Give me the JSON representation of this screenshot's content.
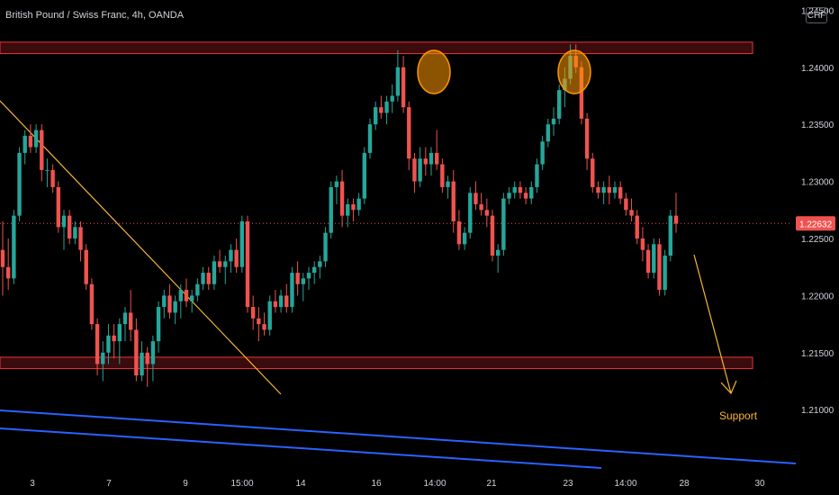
{
  "header": {
    "title": "British Pound / Swiss Franc, 4h, OANDA",
    "currency_button": "CHF"
  },
  "colors": {
    "background": "#000000",
    "up": "#26a69a",
    "down": "#ef5350",
    "zone_fill": "#3b0b0d",
    "zone_stroke": "#e53935",
    "trendline": "#f7b733",
    "channel": "#2962ff",
    "highlight_circle": "#ff9800",
    "price_badge": "#ef5350",
    "axis_text": "#d1d4dc",
    "support_text": "#f7b733"
  },
  "chart_data": {
    "type": "candlestick",
    "symbol": "British Pound / Swiss Franc",
    "timeframe": "4h",
    "broker": "OANDA",
    "ylim": [
      1.2045,
      1.2455
    ],
    "y_ticks": [
      "1.24500",
      "1.24000",
      "1.23500",
      "1.23000",
      "1.22500",
      "1.22000",
      "1.21500",
      "1.21000"
    ],
    "x_ticks": [
      "3",
      "7",
      "9",
      "15:00",
      "14",
      "16",
      "14:00",
      "21",
      "23",
      "14:00",
      "28",
      "30"
    ],
    "current_price": "1.22632",
    "candles": [
      [
        1.224,
        1.2265,
        1.22,
        1.2225
      ],
      [
        1.2225,
        1.225,
        1.2205,
        1.2215
      ],
      [
        1.2215,
        1.2275,
        1.221,
        1.227
      ],
      [
        1.227,
        1.233,
        1.2265,
        1.2325
      ],
      [
        1.2325,
        1.2345,
        1.2315,
        1.234
      ],
      [
        1.234,
        1.235,
        1.2325,
        1.233
      ],
      [
        1.233,
        1.235,
        1.2325,
        1.2345
      ],
      [
        1.2345,
        1.235,
        1.23,
        1.231
      ],
      [
        1.231,
        1.232,
        1.2295,
        1.231
      ],
      [
        1.231,
        1.2315,
        1.229,
        1.2295
      ],
      [
        1.2295,
        1.23,
        1.2255,
        1.226
      ],
      [
        1.226,
        1.2275,
        1.224,
        1.227
      ],
      [
        1.227,
        1.2275,
        1.2245,
        1.225
      ],
      [
        1.225,
        1.2265,
        1.2245,
        1.226
      ],
      [
        1.226,
        1.2265,
        1.223,
        1.224
      ],
      [
        1.224,
        1.2245,
        1.2205,
        1.221
      ],
      [
        1.221,
        1.2215,
        1.217,
        1.2175
      ],
      [
        1.2175,
        1.218,
        1.213,
        1.214
      ],
      [
        1.214,
        1.216,
        1.2125,
        1.215
      ],
      [
        1.215,
        1.2175,
        1.214,
        1.2165
      ],
      [
        1.2165,
        1.2175,
        1.2145,
        1.216
      ],
      [
        1.216,
        1.218,
        1.214,
        1.2175
      ],
      [
        1.2175,
        1.219,
        1.216,
        1.2185
      ],
      [
        1.2185,
        1.2205,
        1.216,
        1.217
      ],
      [
        1.217,
        1.218,
        1.2125,
        1.213
      ],
      [
        1.213,
        1.216,
        1.2125,
        1.215
      ],
      [
        1.215,
        1.2155,
        1.212,
        1.214
      ],
      [
        1.214,
        1.2165,
        1.2125,
        1.216
      ],
      [
        1.216,
        1.2195,
        1.215,
        1.219
      ],
      [
        1.219,
        1.2205,
        1.218,
        1.22
      ],
      [
        1.22,
        1.221,
        1.218,
        1.2185
      ],
      [
        1.2185,
        1.22,
        1.2175,
        1.2195
      ],
      [
        1.2195,
        1.221,
        1.218,
        1.2205
      ],
      [
        1.2205,
        1.2215,
        1.219,
        1.2195
      ],
      [
        1.2195,
        1.2205,
        1.2185,
        1.22
      ],
      [
        1.22,
        1.2215,
        1.2195,
        1.221
      ],
      [
        1.221,
        1.2225,
        1.2205,
        1.222
      ],
      [
        1.222,
        1.2225,
        1.2205,
        1.221
      ],
      [
        1.221,
        1.2235,
        1.2205,
        1.223
      ],
      [
        1.223,
        1.224,
        1.222,
        1.2225
      ],
      [
        1.2225,
        1.2235,
        1.221,
        1.223
      ],
      [
        1.223,
        1.2245,
        1.222,
        1.224
      ],
      [
        1.224,
        1.225,
        1.222,
        1.2225
      ],
      [
        1.2225,
        1.227,
        1.222,
        1.2265
      ],
      [
        1.2265,
        1.227,
        1.2185,
        1.219
      ],
      [
        1.219,
        1.22,
        1.217,
        1.218
      ],
      [
        1.218,
        1.219,
        1.216,
        1.2175
      ],
      [
        1.2175,
        1.2185,
        1.2165,
        1.217
      ],
      [
        1.217,
        1.22,
        1.2165,
        1.2195
      ],
      [
        1.2195,
        1.2205,
        1.2185,
        1.219
      ],
      [
        1.219,
        1.2205,
        1.2185,
        1.22
      ],
      [
        1.22,
        1.221,
        1.2185,
        1.219
      ],
      [
        1.219,
        1.2225,
        1.2185,
        1.222
      ],
      [
        1.222,
        1.223,
        1.22,
        1.221
      ],
      [
        1.221,
        1.222,
        1.2195,
        1.2215
      ],
      [
        1.2215,
        1.2225,
        1.2205,
        1.222
      ],
      [
        1.222,
        1.223,
        1.221,
        1.2225
      ],
      [
        1.2225,
        1.2235,
        1.2215,
        1.223
      ],
      [
        1.223,
        1.226,
        1.2225,
        1.2255
      ],
      [
        1.2255,
        1.23,
        1.225,
        1.2295
      ],
      [
        1.2295,
        1.2305,
        1.228,
        1.23
      ],
      [
        1.23,
        1.231,
        1.226,
        1.227
      ],
      [
        1.227,
        1.2285,
        1.226,
        1.228
      ],
      [
        1.228,
        1.2285,
        1.2265,
        1.2275
      ],
      [
        1.2275,
        1.229,
        1.227,
        1.2285
      ],
      [
        1.2285,
        1.233,
        1.228,
        1.2325
      ],
      [
        1.2325,
        1.2355,
        1.232,
        1.235
      ],
      [
        1.235,
        1.237,
        1.2345,
        1.2365
      ],
      [
        1.2365,
        1.2375,
        1.2355,
        1.236
      ],
      [
        1.236,
        1.2375,
        1.235,
        1.237
      ],
      [
        1.237,
        1.2385,
        1.236,
        1.2375
      ],
      [
        1.2375,
        1.2415,
        1.237,
        1.24
      ],
      [
        1.24,
        1.241,
        1.236,
        1.2365
      ],
      [
        1.2365,
        1.237,
        1.231,
        1.232
      ],
      [
        1.232,
        1.2325,
        1.229,
        1.23
      ],
      [
        1.23,
        1.233,
        1.2295,
        1.232
      ],
      [
        1.232,
        1.233,
        1.2305,
        1.2315
      ],
      [
        1.2315,
        1.233,
        1.2305,
        1.2325
      ],
      [
        1.2325,
        1.2345,
        1.231,
        1.2315
      ],
      [
        1.2315,
        1.232,
        1.229,
        1.2295
      ],
      [
        1.2295,
        1.2305,
        1.2285,
        1.23
      ],
      [
        1.23,
        1.231,
        1.2255,
        1.2265
      ],
      [
        1.2265,
        1.2275,
        1.224,
        1.2245
      ],
      [
        1.2245,
        1.226,
        1.224,
        1.2255
      ],
      [
        1.2255,
        1.2295,
        1.225,
        1.229
      ],
      [
        1.229,
        1.23,
        1.2275,
        1.228
      ],
      [
        1.228,
        1.229,
        1.227,
        1.2275
      ],
      [
        1.2275,
        1.2285,
        1.226,
        1.227
      ],
      [
        1.227,
        1.2275,
        1.223,
        1.2235
      ],
      [
        1.2235,
        1.2245,
        1.222,
        1.224
      ],
      [
        1.224,
        1.229,
        1.2235,
        1.2285
      ],
      [
        1.2285,
        1.2295,
        1.228,
        1.229
      ],
      [
        1.229,
        1.23,
        1.2285,
        1.2295
      ],
      [
        1.2295,
        1.23,
        1.2285,
        1.229
      ],
      [
        1.229,
        1.2295,
        1.228,
        1.2285
      ],
      [
        1.2285,
        1.23,
        1.228,
        1.2295
      ],
      [
        1.2295,
        1.232,
        1.229,
        1.2315
      ],
      [
        1.2315,
        1.234,
        1.231,
        1.2335
      ],
      [
        1.2335,
        1.2355,
        1.233,
        1.235
      ],
      [
        1.235,
        1.2365,
        1.234,
        1.2355
      ],
      [
        1.2355,
        1.2385,
        1.235,
        1.238
      ],
      [
        1.238,
        1.24,
        1.2365,
        1.239
      ],
      [
        1.239,
        1.242,
        1.2385,
        1.241
      ],
      [
        1.241,
        1.242,
        1.2395,
        1.24
      ],
      [
        1.24,
        1.2405,
        1.235,
        1.2355
      ],
      [
        1.2355,
        1.236,
        1.231,
        1.232
      ],
      [
        1.232,
        1.2325,
        1.229,
        1.2295
      ],
      [
        1.2295,
        1.23,
        1.2285,
        1.229
      ],
      [
        1.229,
        1.23,
        1.228,
        1.2295
      ],
      [
        1.2295,
        1.2305,
        1.228,
        1.229
      ],
      [
        1.229,
        1.23,
        1.2285,
        1.2295
      ],
      [
        1.2295,
        1.23,
        1.228,
        1.2285
      ],
      [
        1.2285,
        1.229,
        1.227,
        1.2275
      ],
      [
        1.2275,
        1.2285,
        1.2265,
        1.227
      ],
      [
        1.227,
        1.2275,
        1.2245,
        1.225
      ],
      [
        1.225,
        1.226,
        1.223,
        1.224
      ],
      [
        1.224,
        1.2245,
        1.2215,
        1.222
      ],
      [
        1.222,
        1.225,
        1.2215,
        1.2245
      ],
      [
        1.2245,
        1.225,
        1.22,
        1.2205
      ],
      [
        1.2205,
        1.224,
        1.22,
        1.2235
      ],
      [
        1.2235,
        1.2275,
        1.223,
        1.227
      ],
      [
        1.227,
        1.229,
        1.2255,
        1.2263
      ]
    ],
    "resistance_zone": [
      1.2412,
      1.2422
    ],
    "support_zone": [
      1.2136,
      1.2146
    ],
    "annotations": [
      "Support"
    ]
  }
}
